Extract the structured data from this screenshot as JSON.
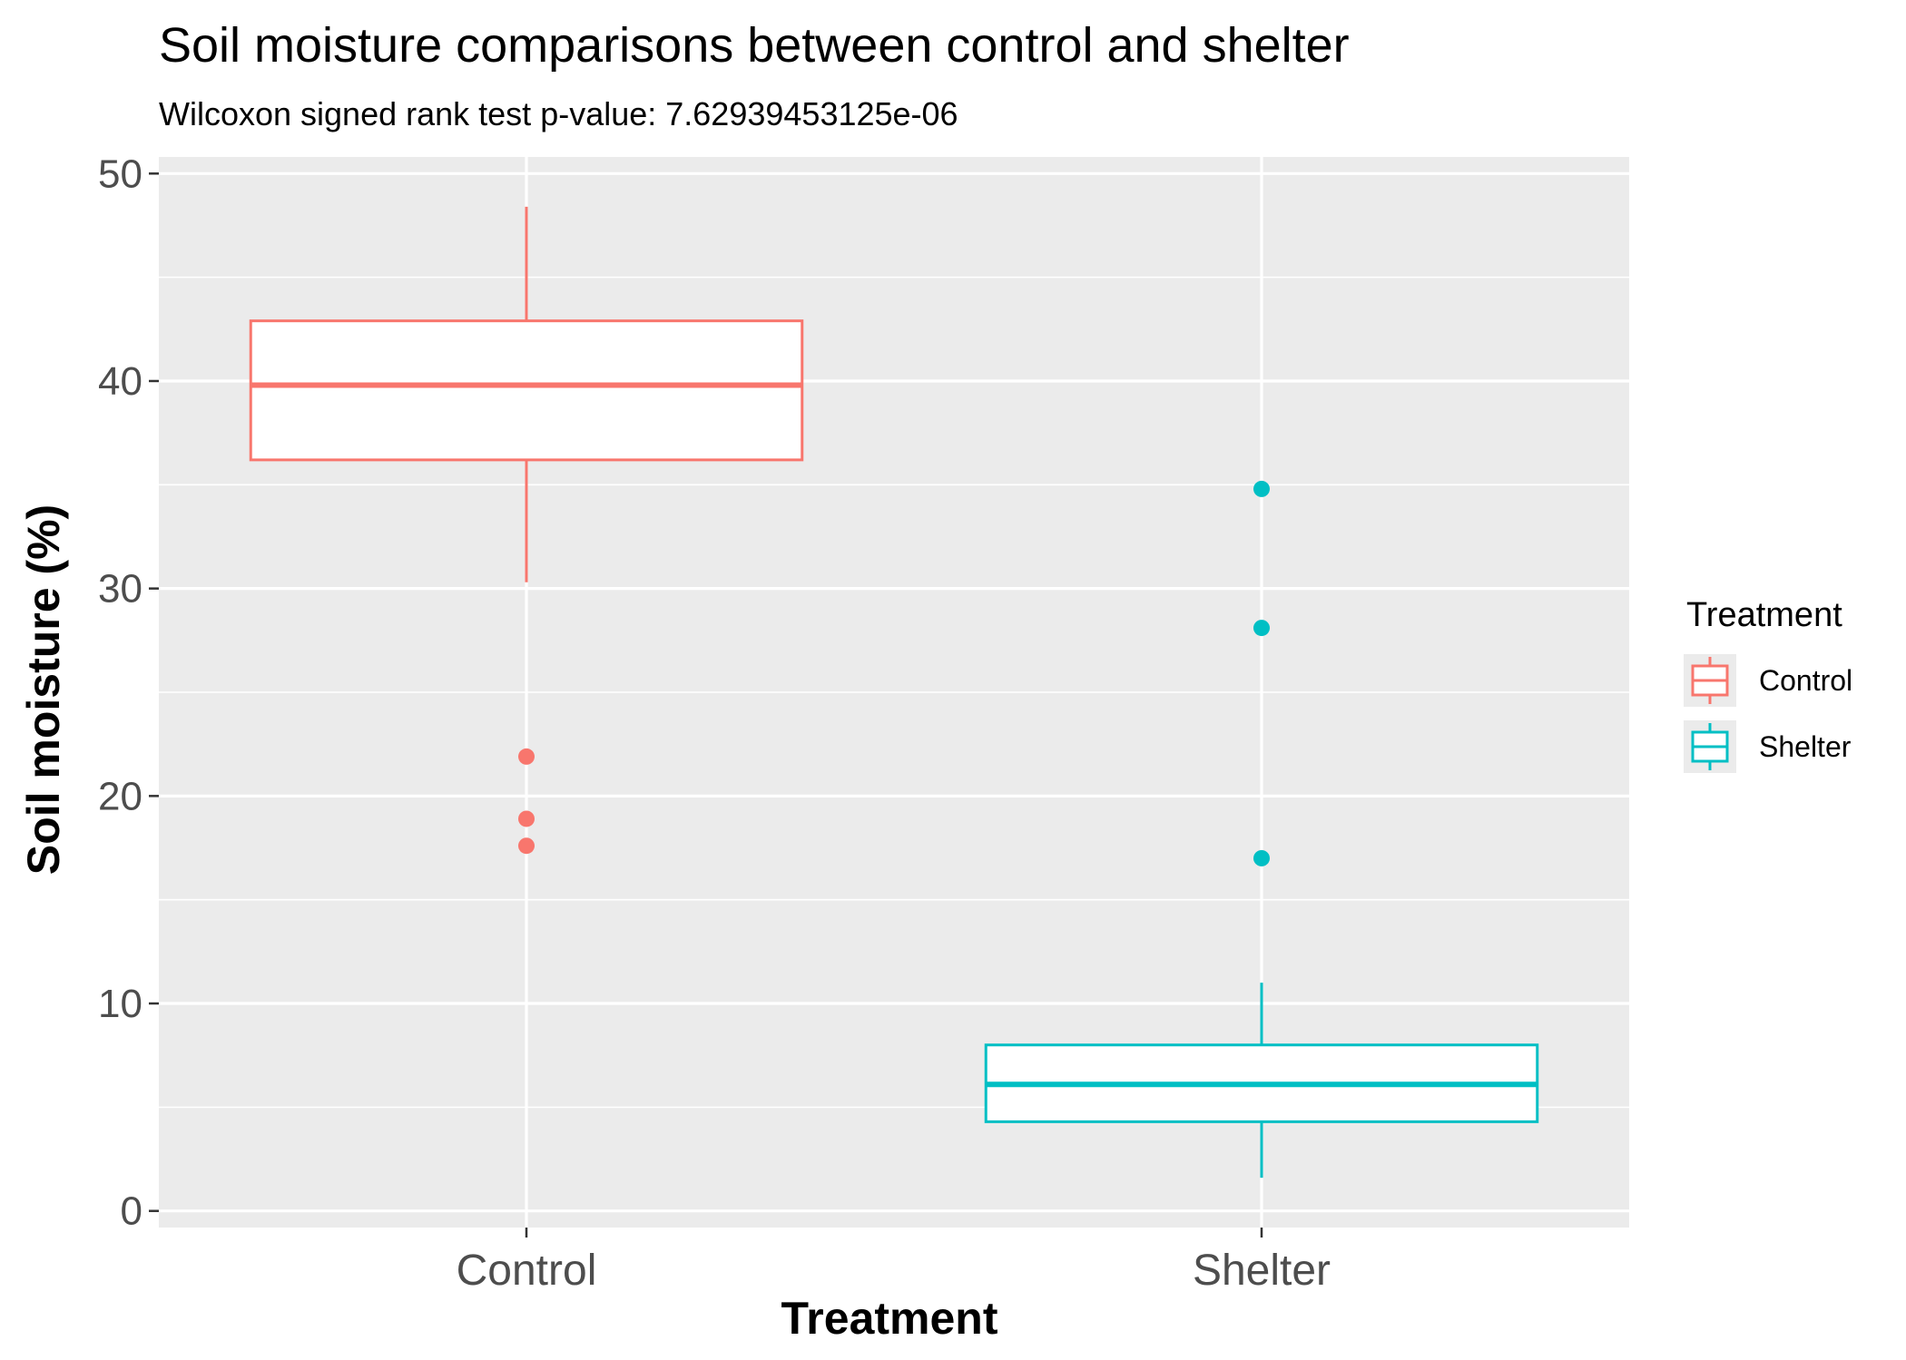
{
  "chart_data": {
    "type": "box",
    "title": "Soil moisture comparisons between control and shelter",
    "subtitle": "Wilcoxon signed rank test p-value: 7.62939453125e-06",
    "xlabel": "Treatment",
    "ylabel": "Soil moisture (%)",
    "ylim": [
      -0.8,
      50.8
    ],
    "y_ticks": [
      0,
      10,
      20,
      30,
      40,
      50
    ],
    "y_tick_labels": [
      "0",
      "10",
      "20",
      "30",
      "40",
      "50"
    ],
    "grid": true,
    "categories": [
      "Control",
      "Shelter"
    ],
    "boxes": [
      {
        "category": "Control",
        "color": "#F8766D",
        "whisker_low": 30.3,
        "q1": 36.2,
        "median": 39.8,
        "q3": 42.9,
        "whisker_high": 48.4,
        "outliers": [
          21.9,
          18.9,
          17.6
        ]
      },
      {
        "category": "Shelter",
        "color": "#00BFC4",
        "whisker_low": 1.6,
        "q1": 4.3,
        "median": 6.1,
        "q3": 8.0,
        "whisker_high": 11.0,
        "outliers": [
          34.8,
          28.1,
          17.0
        ]
      }
    ],
    "legend": {
      "title": "Treatment",
      "position": "right",
      "entries": [
        {
          "label": "Control",
          "color": "#F8766D"
        },
        {
          "label": "Shelter",
          "color": "#00BFC4"
        }
      ]
    },
    "colors": {
      "panel_background": "#EBEBEB",
      "grid_major": "#FFFFFF",
      "tick_text": "#4D4D4D",
      "box_fill": "#FFFFFF"
    }
  }
}
